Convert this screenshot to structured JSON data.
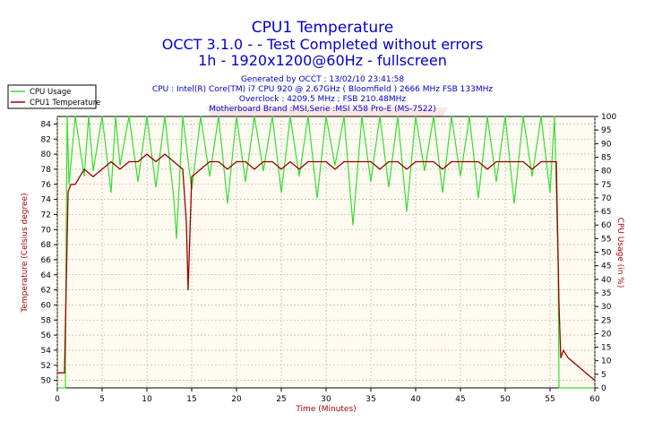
{
  "header": {
    "title": "CPU1 Temperature",
    "line2": "OCCT 3.1.0 -  - Test Completed without errors",
    "line3": "1h - 1920x1200@60Hz - fullscreen",
    "info": [
      "Generated by OCCT : 13/02/10 23:41:58",
      "CPU : Intel(R) Core(TM) i7 CPU 920 @ 2.67GHz ( Bloomfield ) 2666 MHz FSB 133MHz",
      "Overclock : 4209.5 MHz ; FSB 210.48MHz",
      "Motherboard Brand :MSI,Serie :MSI X58 Pro-E (MS-7522)"
    ]
  },
  "colors": {
    "title": "#0000cc",
    "axis_title": "#aa0000",
    "plot_bg": "#fffbf0",
    "cpu_usage": "#33dd33",
    "cpu_temp": "#990000"
  },
  "chart_data": {
    "type": "line",
    "xlabel": "Time (Minutes)",
    "ylabel": "Temperature (Celsius degree)",
    "y2label": "CPU Usage (in %)",
    "xlim": [
      0,
      60
    ],
    "xticks": [
      0,
      5,
      10,
      15,
      20,
      25,
      30,
      35,
      40,
      45,
      50,
      55,
      60
    ],
    "ylim": [
      49,
      85
    ],
    "yticks": [
      50,
      52,
      54,
      56,
      58,
      60,
      62,
      64,
      66,
      68,
      70,
      72,
      74,
      76,
      78,
      80,
      82,
      84
    ],
    "y2lim": [
      0,
      100
    ],
    "y2ticks": [
      0,
      5,
      10,
      15,
      20,
      25,
      30,
      35,
      40,
      45,
      50,
      55,
      60,
      65,
      70,
      75,
      80,
      85,
      90,
      95,
      100
    ],
    "grid": true,
    "legend_position": "top-left",
    "series": [
      {
        "name": "CPU Usage",
        "axis": "right",
        "x": [
          0,
          0.5,
          0.9,
          1.0,
          1.1,
          1.3,
          2,
          3,
          3.5,
          4,
          5,
          6,
          6.5,
          7,
          8,
          9,
          10,
          11,
          12,
          13,
          13.3,
          14,
          15,
          16,
          17,
          18,
          19,
          20,
          21,
          22,
          23,
          24,
          25,
          26,
          27,
          28,
          29,
          30,
          31,
          32,
          33,
          34,
          35,
          36,
          37,
          38,
          39,
          40,
          41,
          42,
          43,
          44,
          45,
          46,
          47,
          48,
          49,
          50,
          51,
          52,
          53,
          54,
          55,
          55.5,
          55.9,
          56,
          56.3,
          57,
          58,
          59,
          60
        ],
        "values": [
          0,
          0,
          0,
          60,
          100,
          75,
          100,
          78,
          100,
          80,
          100,
          72,
          100,
          82,
          100,
          76,
          100,
          74,
          100,
          70,
          55,
          100,
          73,
          100,
          78,
          100,
          68,
          100,
          76,
          100,
          80,
          100,
          72,
          100,
          78,
          100,
          70,
          100,
          82,
          100,
          60,
          100,
          76,
          100,
          74,
          100,
          65,
          100,
          80,
          100,
          72,
          100,
          78,
          100,
          70,
          100,
          76,
          100,
          68,
          100,
          78,
          100,
          72,
          100,
          45,
          0,
          0,
          0,
          0,
          0,
          0
        ]
      },
      {
        "name": "CPU1 Temperature",
        "axis": "left",
        "x": [
          0,
          0.5,
          0.8,
          1.0,
          1.2,
          1.5,
          2,
          2.5,
          3,
          4,
          5,
          6,
          7,
          8,
          9,
          10,
          11,
          12,
          13,
          14,
          14.4,
          14.6,
          15,
          16,
          17,
          18,
          19,
          20,
          21,
          22,
          23,
          24,
          25,
          26,
          27,
          28,
          29,
          30,
          31,
          32,
          33,
          34,
          35,
          36,
          37,
          38,
          39,
          40,
          41,
          42,
          43,
          44,
          45,
          46,
          47,
          48,
          49,
          50,
          51,
          52,
          53,
          54,
          55,
          55.7,
          56.0,
          56.2,
          56.5,
          57,
          58,
          59,
          60
        ],
        "values": [
          51,
          51,
          51,
          63,
          75,
          76,
          76,
          77,
          78,
          77,
          78,
          79,
          78,
          79,
          79,
          80,
          79,
          80,
          79,
          78,
          71,
          62,
          77,
          78,
          79,
          79,
          78,
          79,
          79,
          78,
          79,
          79,
          78,
          79,
          78,
          79,
          79,
          79,
          78,
          79,
          79,
          79,
          79,
          78,
          79,
          79,
          78,
          79,
          79,
          79,
          78,
          79,
          79,
          79,
          79,
          78,
          79,
          79,
          79,
          79,
          78,
          79,
          79,
          79,
          60,
          53,
          54,
          53,
          52,
          51,
          50
        ]
      }
    ]
  }
}
